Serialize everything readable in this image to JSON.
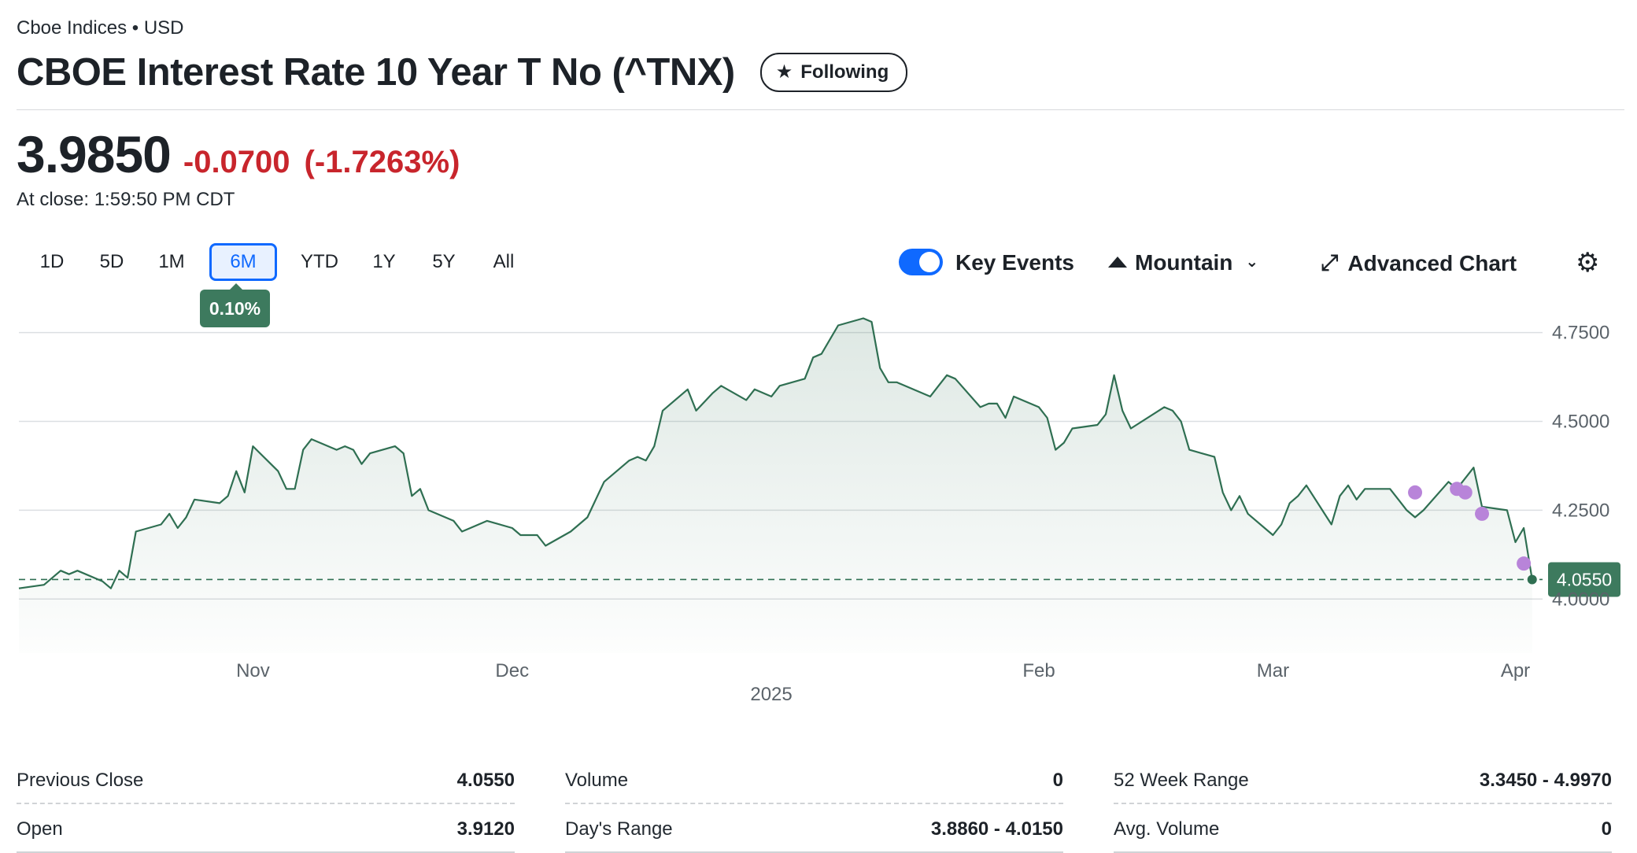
{
  "header": {
    "exchange": "Cboe Indices",
    "currency": "USD",
    "title": "CBOE Interest Rate 10 Year T No (^TNX)",
    "follow_label": "Following"
  },
  "quote": {
    "price": "3.9850",
    "change": "-0.0700",
    "change_pct": "(-1.7263%)",
    "close_time": "At close: 1:59:50 PM CDT"
  },
  "ranges": [
    "1D",
    "5D",
    "1M",
    "6M",
    "YTD",
    "1Y",
    "5Y",
    "All"
  ],
  "selected_range": "6M",
  "range_change_badge": "0.10%",
  "toolbar": {
    "key_events_label": "Key Events",
    "key_events_on": true,
    "chart_type_label": "Mountain",
    "advanced_label": "Advanced Chart"
  },
  "colors": {
    "line": "#2f6f52",
    "negative": "#c8252c",
    "accent": "#0f69ff",
    "event": "#b884d9",
    "badge": "#3d7a5e"
  },
  "chart_data": {
    "type": "area",
    "x_tick_labels": [
      "Nov",
      "Dec",
      "Feb",
      "Mar",
      "Apr"
    ],
    "x_year_label": "2025",
    "y_ticks": [
      "4.7500",
      "4.5000",
      "4.2500",
      "4.0000"
    ],
    "ylim": [
      3.87,
      4.8
    ],
    "grid": true,
    "reference_line": {
      "value": 4.055,
      "label": "4.0550"
    },
    "series": [
      {
        "x": [
          "2024-10-04",
          "2024-10-07",
          "2024-10-08",
          "2024-10-09",
          "2024-10-10",
          "2024-10-11",
          "2024-10-14",
          "2024-10-15",
          "2024-10-16",
          "2024-10-17",
          "2024-10-18",
          "2024-10-21",
          "2024-10-22",
          "2024-10-23",
          "2024-10-24",
          "2024-10-25",
          "2024-10-28",
          "2024-10-29",
          "2024-10-30",
          "2024-10-31",
          "2024-11-01",
          "2024-11-04",
          "2024-11-05",
          "2024-11-06",
          "2024-11-07",
          "2024-11-08",
          "2024-11-11",
          "2024-11-12",
          "2024-11-13",
          "2024-11-14",
          "2024-11-15",
          "2024-11-18",
          "2024-11-19",
          "2024-11-20",
          "2024-11-21",
          "2024-11-22",
          "2024-11-25",
          "2024-11-26",
          "2024-11-27",
          "2024-11-29",
          "2024-12-02",
          "2024-12-03",
          "2024-12-04",
          "2024-12-05",
          "2024-12-06",
          "2024-12-09",
          "2024-12-10",
          "2024-12-11",
          "2024-12-12",
          "2024-12-13",
          "2024-12-16",
          "2024-12-17",
          "2024-12-18",
          "2024-12-19",
          "2024-12-20",
          "2024-12-23",
          "2024-12-24",
          "2024-12-26",
          "2024-12-27",
          "2024-12-30",
          "2024-12-31",
          "2025-01-02",
          "2025-01-03",
          "2025-01-06",
          "2025-01-07",
          "2025-01-08",
          "2025-01-10",
          "2025-01-13",
          "2025-01-14",
          "2025-01-15",
          "2025-01-16",
          "2025-01-17",
          "2025-01-21",
          "2025-01-22",
          "2025-01-23",
          "2025-01-24",
          "2025-01-27",
          "2025-01-28",
          "2025-01-29",
          "2025-01-30",
          "2025-01-31",
          "2025-02-03",
          "2025-02-04",
          "2025-02-05",
          "2025-02-06",
          "2025-02-07",
          "2025-02-10",
          "2025-02-11",
          "2025-02-12",
          "2025-02-13",
          "2025-02-14",
          "2025-02-18",
          "2025-02-19",
          "2025-02-20",
          "2025-02-21",
          "2025-02-24",
          "2025-02-25",
          "2025-02-26",
          "2025-02-27",
          "2025-02-28",
          "2025-03-03",
          "2025-03-04",
          "2025-03-05",
          "2025-03-06",
          "2025-03-07",
          "2025-03-10",
          "2025-03-11",
          "2025-03-12",
          "2025-03-13",
          "2025-03-14",
          "2025-03-17",
          "2025-03-18",
          "2025-03-19",
          "2025-03-20",
          "2025-03-21",
          "2025-03-24",
          "2025-03-25",
          "2025-03-26",
          "2025-03-27",
          "2025-03-28",
          "2025-03-31",
          "2025-04-01",
          "2025-04-02",
          "2025-04-03"
        ],
        "values": [
          4.03,
          4.04,
          4.06,
          4.08,
          4.07,
          4.08,
          4.05,
          4.03,
          4.08,
          4.06,
          4.19,
          4.21,
          4.24,
          4.2,
          4.23,
          4.28,
          4.27,
          4.29,
          4.36,
          4.3,
          4.43,
          4.36,
          4.31,
          4.31,
          4.42,
          4.45,
          4.42,
          4.43,
          4.42,
          4.38,
          4.41,
          4.43,
          4.41,
          4.29,
          4.31,
          4.25,
          4.22,
          4.19,
          4.2,
          4.22,
          4.2,
          4.18,
          4.18,
          4.18,
          4.15,
          4.19,
          4.21,
          4.23,
          4.28,
          4.33,
          4.39,
          4.4,
          4.39,
          4.43,
          4.53,
          4.59,
          4.53,
          4.58,
          4.6,
          4.56,
          4.59,
          4.57,
          4.6,
          4.62,
          4.68,
          4.69,
          4.77,
          4.79,
          4.78,
          4.65,
          4.61,
          4.61,
          4.57,
          4.6,
          4.63,
          4.62,
          4.54,
          4.55,
          4.55,
          4.51,
          4.57,
          4.54,
          4.51,
          4.42,
          4.44,
          4.48,
          4.49,
          4.52,
          4.63,
          4.53,
          4.48,
          4.54,
          4.53,
          4.5,
          4.42,
          4.4,
          4.3,
          4.25,
          4.29,
          4.24,
          4.18,
          4.21,
          4.27,
          4.29,
          4.32,
          4.21,
          4.29,
          4.32,
          4.28,
          4.31,
          4.31,
          4.28,
          4.25,
          4.23,
          4.25,
          4.33,
          4.31,
          4.34,
          4.37,
          4.26,
          4.25,
          4.16,
          4.2,
          4.055
        ]
      }
    ],
    "key_events": [
      {
        "x": "2025-03-20",
        "y": 4.3
      },
      {
        "x": "2025-03-25",
        "y": 4.31
      },
      {
        "x": "2025-03-26",
        "y": 4.3
      },
      {
        "x": "2025-03-28",
        "y": 4.24
      },
      {
        "x": "2025-04-02",
        "y": 4.1
      }
    ]
  },
  "stats": {
    "col1": [
      {
        "label": "Previous Close",
        "value": "4.0550"
      },
      {
        "label": "Open",
        "value": "3.9120"
      }
    ],
    "col2": [
      {
        "label": "Volume",
        "value": "0"
      },
      {
        "label": "Day's Range",
        "value": "3.8860 - 4.0150"
      }
    ],
    "col3": [
      {
        "label": "52 Week Range",
        "value": "3.3450 - 4.9970"
      },
      {
        "label": "Avg. Volume",
        "value": "0"
      }
    ]
  }
}
